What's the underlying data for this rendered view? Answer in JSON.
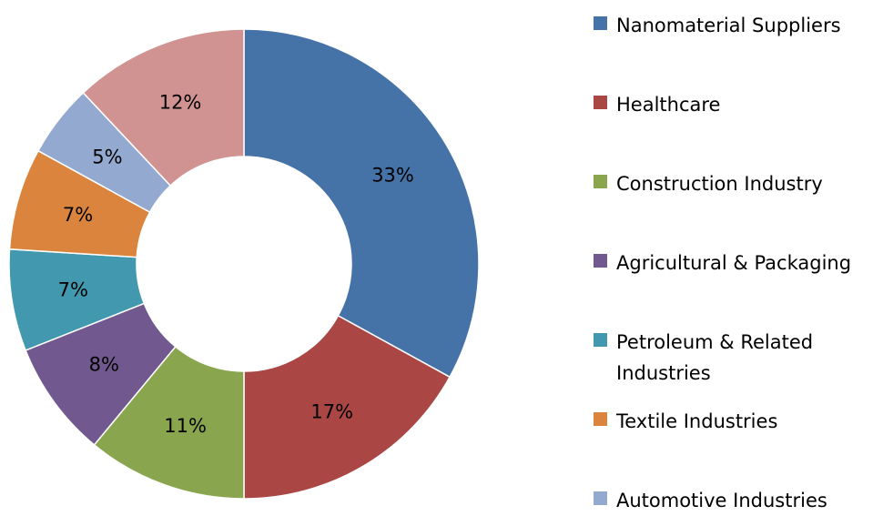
{
  "chart_data": {
    "type": "donut",
    "categories": [
      "Nanomaterial Suppliers",
      "Healthcare",
      "Construction Industry",
      "Agricultural & Packaging",
      "Petroleum & Related Industries",
      "Textile Industries",
      "Automotive Industries",
      null
    ],
    "values": [
      33,
      17,
      11,
      8,
      7,
      7,
      5,
      12
    ],
    "value_labels": [
      "33%",
      "17%",
      "11%",
      "8%",
      "7%",
      "7%",
      "5%",
      "12%"
    ],
    "colors": [
      "#4572a7",
      "#aa4643",
      "#89a54e",
      "#71588f",
      "#4198af",
      "#db843d",
      "#93a9cf",
      "#d19392"
    ],
    "legend": "right"
  }
}
